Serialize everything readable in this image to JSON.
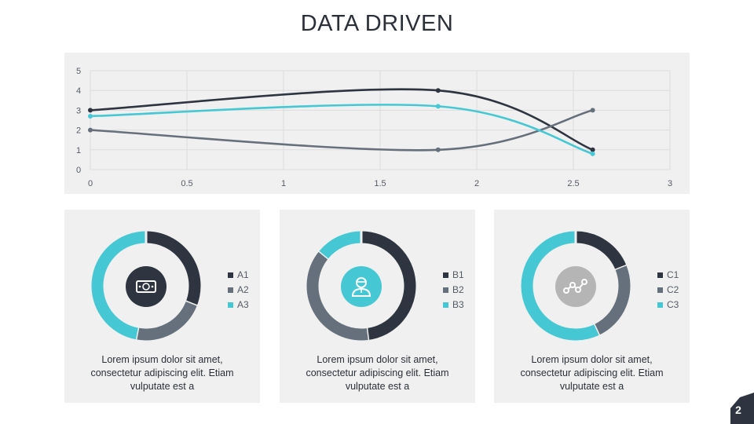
{
  "title": "DATA DRIVEN",
  "colors": {
    "dark": "#2e3440",
    "gray": "#66707d",
    "cyan": "#45c8d3",
    "panel": "#f0f0f0",
    "light_gray": "#b5b5b5"
  },
  "chart_data": [
    {
      "type": "line",
      "title": "",
      "xlabel": "",
      "ylabel": "",
      "xlim": [
        0,
        3
      ],
      "ylim": [
        0,
        5
      ],
      "x_ticks": [
        "0",
        "0.5",
        "1",
        "1.5",
        "2",
        "2.5",
        "3"
      ],
      "y_ticks": [
        "0",
        "1",
        "2",
        "3",
        "4",
        "5"
      ],
      "grid": true,
      "smooth": true,
      "series": [
        {
          "color": "#2e3440",
          "points": [
            [
              0,
              3.0
            ],
            [
              1.8,
              4.0
            ],
            [
              2.6,
              1.0
            ]
          ]
        },
        {
          "color": "#66707d",
          "points": [
            [
              0,
              2.0
            ],
            [
              1.8,
              1.0
            ],
            [
              2.6,
              3.0
            ]
          ]
        },
        {
          "color": "#45c8d3",
          "points": [
            [
              0,
              2.7
            ],
            [
              1.8,
              3.2
            ],
            [
              2.6,
              0.8
            ]
          ]
        }
      ]
    },
    {
      "type": "pie",
      "style": "donut",
      "labels": [
        "A1",
        "A2",
        "A3"
      ],
      "values": [
        31,
        22,
        47
      ],
      "colors": [
        "#2e3440",
        "#66707d",
        "#45c8d3"
      ]
    },
    {
      "type": "pie",
      "style": "donut",
      "labels": [
        "B1",
        "B2",
        "B3"
      ],
      "values": [
        48,
        38,
        14
      ],
      "colors": [
        "#2e3440",
        "#66707d",
        "#45c8d3"
      ]
    },
    {
      "type": "pie",
      "style": "donut",
      "labels": [
        "C1",
        "C2",
        "C3"
      ],
      "values": [
        19,
        24,
        57
      ],
      "colors": [
        "#2e3440",
        "#66707d",
        "#45c8d3"
      ]
    }
  ],
  "cards": [
    {
      "icon": "money-bill-icon",
      "icon_bg": "#2e3440",
      "description": "Lorem ipsum dolor sit amet, consectetur adipiscing elit. Etiam vulputate est a"
    },
    {
      "icon": "person-icon",
      "icon_bg": "#45c8d3",
      "description": "Lorem ipsum dolor sit amet, consectetur adipiscing elit. Etiam vulputate est a"
    },
    {
      "icon": "network-nodes-icon",
      "icon_bg": "#b5b5b5",
      "description": "Lorem ipsum dolor sit amet, consectetur adipiscing elit. Etiam vulputate est a"
    }
  ],
  "page_number": "2"
}
